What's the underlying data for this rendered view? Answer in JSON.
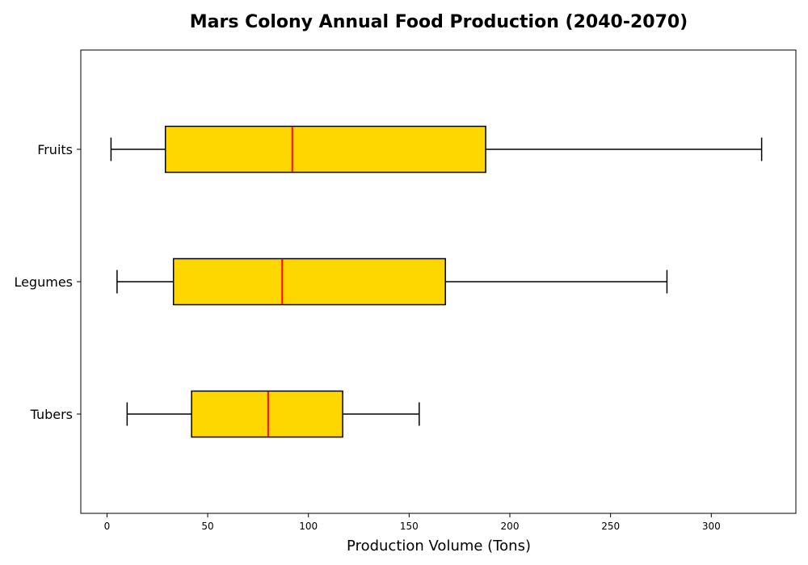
{
  "chart_data": {
    "type": "boxplot",
    "orientation": "horizontal",
    "title": "Mars Colony Annual Food Production (2040-2070)",
    "xlabel": "Production Volume (Tons)",
    "ylabel": "",
    "xlim": [
      -13,
      342
    ],
    "xticks": [
      0,
      50,
      100,
      150,
      200,
      250,
      300
    ],
    "grid": false,
    "box_color": "#FFD700",
    "median_color": "#FF0000",
    "edge_color": "#000000",
    "categories": [
      "Fruits",
      "Legumes",
      "Tubers"
    ],
    "series": [
      {
        "category": "Fruits",
        "whisker_low": 2,
        "q1": 29,
        "median": 92,
        "q3": 188,
        "whisker_high": 325
      },
      {
        "category": "Legumes",
        "whisker_low": 5,
        "q1": 33,
        "median": 87,
        "q3": 168,
        "whisker_high": 278
      },
      {
        "category": "Tubers",
        "whisker_low": 10,
        "q1": 42,
        "median": 80,
        "q3": 117,
        "whisker_high": 155
      }
    ]
  }
}
